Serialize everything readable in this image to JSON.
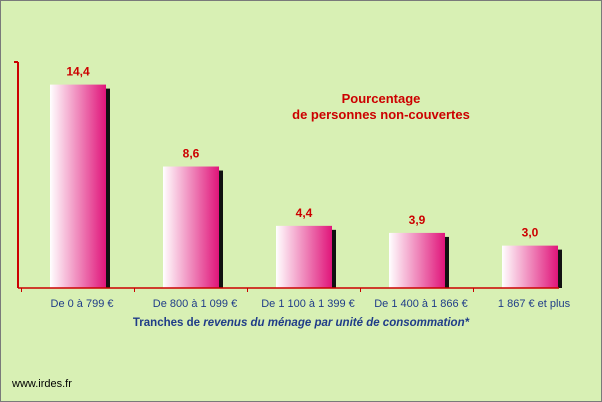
{
  "chart_data": {
    "type": "bar",
    "title": "Pourcentage de personnes non-couvertes",
    "title_lines": [
      "Pourcentage",
      "de personnes non-couvertes"
    ],
    "categories": [
      "De 0 à 799 €",
      "De 800 à 1 099 €",
      "De 1 100 à 1 399 €",
      "De 1 400 à 1 866 €",
      "1 867 € et plus"
    ],
    "values": [
      14.4,
      8.6,
      4.4,
      3.9,
      3.0
    ],
    "value_labels": [
      "14,4",
      "8,6",
      "4,4",
      "3,9",
      "3,0"
    ],
    "xlabel_parts": {
      "plain": "Tranches de ",
      "italic": "revenus du ménage par unité de consommation*"
    },
    "ylabel": "",
    "ylim": [
      0,
      16
    ],
    "grid": false,
    "colors": {
      "background": "#d8f0b4",
      "bar_light": "#ffffff",
      "bar_dark": "#e0157a",
      "bar_shadow": "#111111",
      "value_label": "#cc0000",
      "axis_text": "#1f3c88",
      "axis_line": "#cc0000"
    }
  },
  "footer": {
    "site": "www.irdes.fr"
  }
}
